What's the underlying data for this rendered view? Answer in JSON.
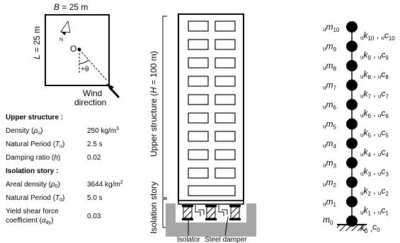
{
  "plan": {
    "width_label_var": "B",
    "width_label_val": " = 25 m",
    "length_label_var": "L",
    "length_label_val": " = 25 m",
    "north": "N",
    "origin": "O",
    "angle": "+θ",
    "wind_line1": "Wind",
    "wind_line2": "direction"
  },
  "upper": {
    "heading": "Upper structure :",
    "density_label": "Density (",
    "density_sym": "ρ",
    "density_sub": "u",
    "density_close": ")",
    "density_value": "250 kg/m",
    "density_sup": "3",
    "period_label": "Natural Period (",
    "period_sym": "T",
    "period_sub": "u",
    "period_close": ")",
    "period_value": "2.5 s",
    "damping_label": "Damping ratio (",
    "damping_sym": "h",
    "damping_close": ")",
    "damping_value": "0.02"
  },
  "isolation": {
    "heading": "Isolation story :",
    "areal_label": "Areal density (",
    "areal_sym": "ρ",
    "areal_sub": "0",
    "areal_close": ")",
    "areal_value": "3644 kg/m",
    "areal_sup": "2",
    "period_label": "Natural Period (",
    "period_sym": "T",
    "period_sub": "0",
    "period_close": ")",
    "period_value": "5.0 s",
    "yield_line1": "Yield shear force",
    "yield_line2": "coefficient (",
    "yield_sym": "α",
    "yield_sub": "dy",
    "yield_close": ")",
    "yield_value": "0.03"
  },
  "building": {
    "upper_label_prefix": "Upper structure (",
    "upper_label_var": "H",
    "upper_label_suffix": " = 100 m)",
    "isolation_label": "Isolation story",
    "isolator_label": "Isolator",
    "damper_label": "Steel damper"
  },
  "model": {
    "masses": [
      {
        "pre": "u",
        "sym": "m",
        "sub": "10"
      },
      {
        "pre": "u",
        "sym": "m",
        "sub": "9"
      },
      {
        "pre": "u",
        "sym": "m",
        "sub": "8"
      },
      {
        "pre": "u",
        "sym": "m",
        "sub": "7"
      },
      {
        "pre": "u",
        "sym": "m",
        "sub": "6"
      },
      {
        "pre": "u",
        "sym": "m",
        "sub": "5"
      },
      {
        "pre": "u",
        "sym": "m",
        "sub": "4"
      },
      {
        "pre": "u",
        "sym": "m",
        "sub": "3"
      },
      {
        "pre": "u",
        "sym": "m",
        "sub": "2"
      },
      {
        "pre": "u",
        "sym": "m",
        "sub": "1"
      },
      {
        "pre": "",
        "sym": "m",
        "sub": "0"
      }
    ],
    "springs": [
      {
        "pre": "u",
        "k": "k",
        "ks": "10",
        "sep": " , ",
        "pre2": "u",
        "c": "c",
        "cs": "10"
      },
      {
        "pre": "u",
        "k": "k",
        "ks": "9",
        "sep": " , ",
        "pre2": "u",
        "c": "c",
        "cs": "9"
      },
      {
        "pre": "u",
        "k": "k",
        "ks": "8",
        "sep": " , ",
        "pre2": "u",
        "c": "c",
        "cs": "8"
      },
      {
        "pre": "u",
        "k": "k",
        "ks": "7",
        "sep": " , ",
        "pre2": "u",
        "c": "c",
        "cs": "7"
      },
      {
        "pre": "u",
        "k": "k",
        "ks": "6",
        "sep": " , ",
        "pre2": "u",
        "c": "c",
        "cs": "6"
      },
      {
        "pre": "u",
        "k": "k",
        "ks": "5",
        "sep": " , ",
        "pre2": "u",
        "c": "c",
        "cs": "5"
      },
      {
        "pre": "u",
        "k": "k",
        "ks": "4",
        "sep": " , ",
        "pre2": "u",
        "c": "c",
        "cs": "4"
      },
      {
        "pre": "u",
        "k": "k",
        "ks": "3",
        "sep": " , ",
        "pre2": "u",
        "c": "c",
        "cs": "3"
      },
      {
        "pre": "u",
        "k": "k",
        "ks": "2",
        "sep": " , ",
        "pre2": "u",
        "c": "c",
        "cs": "2"
      },
      {
        "pre": "u",
        "k": "k",
        "ks": "1",
        "sep": " , ",
        "pre2": "u",
        "c": "c",
        "cs": "1"
      },
      {
        "pre": "",
        "k": "k",
        "ks": "0",
        "sep": " ,",
        "pre2": "",
        "c": "c",
        "cs": "0"
      }
    ]
  }
}
